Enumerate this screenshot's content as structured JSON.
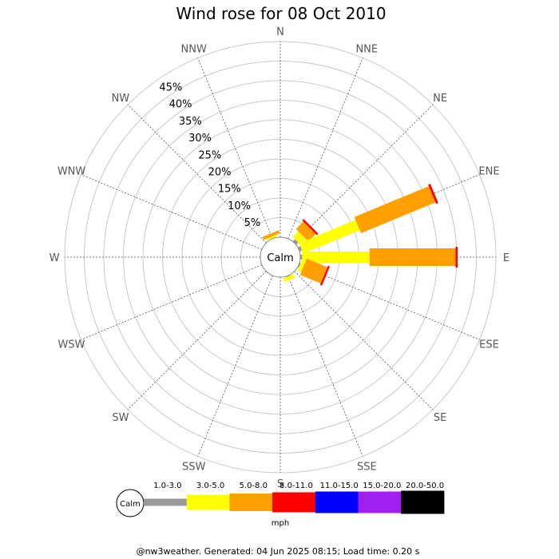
{
  "chart_data": {
    "type": "wind-rose",
    "title": "Wind rose for 08 Oct 2010",
    "directions": [
      "N",
      "NNE",
      "NE",
      "ENE",
      "E",
      "ESE",
      "SE",
      "SSE",
      "S",
      "SSW",
      "SW",
      "WSW",
      "W",
      "WNW",
      "NW",
      "NNW"
    ],
    "radial_ticks": [
      "5%",
      "10%",
      "15%",
      "20%",
      "25%",
      "30%",
      "35%",
      "40%",
      "45%"
    ],
    "radial_max": 50,
    "calm_label": "Calm",
    "speed_bins": [
      {
        "label": "1.0-3.0",
        "color": "#999999"
      },
      {
        "label": "3.0-5.0",
        "color": "#ffff00"
      },
      {
        "label": "5.0-8.0",
        "color": "#ffa000"
      },
      {
        "label": "8.0-11.0",
        "color": "#ff0000"
      },
      {
        "label": "11.0-15.0",
        "color": "#0000ff"
      },
      {
        "label": "15.0-20.0",
        "color": "#a020f0"
      },
      {
        "label": "20.0-50.0",
        "color": "#000000"
      }
    ],
    "unit": "mph",
    "series": [
      {
        "direction": "N",
        "values": [
          0,
          0,
          0,
          0,
          0,
          0,
          0
        ]
      },
      {
        "direction": "NNE",
        "values": [
          0,
          0,
          0,
          0,
          0,
          0,
          0
        ]
      },
      {
        "direction": "NE",
        "values": [
          0.8,
          2.0,
          2.7,
          0.5,
          0,
          0,
          0
        ]
      },
      {
        "direction": "ENE",
        "values": [
          0.7,
          15.6,
          20.6,
          0.6,
          0,
          0,
          0
        ]
      },
      {
        "direction": "E",
        "values": [
          0.5,
          17.2,
          22.0,
          0.5,
          0,
          0,
          0
        ]
      },
      {
        "direction": "ESE",
        "values": [
          0.3,
          1.0,
          5.7,
          0.5,
          0,
          0,
          0
        ]
      },
      {
        "direction": "SE",
        "values": [
          0,
          0,
          0,
          0,
          0,
          0,
          0
        ]
      },
      {
        "direction": "SSE",
        "values": [
          0.2,
          1.0,
          0,
          0,
          0,
          0,
          0
        ]
      },
      {
        "direction": "S",
        "values": [
          0,
          0,
          0,
          0,
          0,
          0,
          0
        ]
      },
      {
        "direction": "SSW",
        "values": [
          0,
          0,
          0,
          0,
          0,
          0,
          0
        ]
      },
      {
        "direction": "SW",
        "values": [
          0,
          0,
          0,
          0,
          0,
          0,
          0
        ]
      },
      {
        "direction": "WSW",
        "values": [
          0,
          0,
          0,
          0,
          0,
          0,
          0
        ]
      },
      {
        "direction": "W",
        "values": [
          0,
          0,
          0,
          0,
          0,
          0,
          0
        ]
      },
      {
        "direction": "WNW",
        "values": [
          0,
          0,
          0,
          0,
          0,
          0,
          0
        ]
      },
      {
        "direction": "NW",
        "values": [
          0,
          0,
          0,
          0,
          0,
          0,
          0
        ]
      },
      {
        "direction": "NNW",
        "values": [
          0.1,
          0.5,
          0.8,
          0,
          0,
          0,
          0
        ]
      }
    ]
  },
  "footer": "@nw3weather. Generated: 04 Jun 2025 08:15; Load time: 0.20 s"
}
